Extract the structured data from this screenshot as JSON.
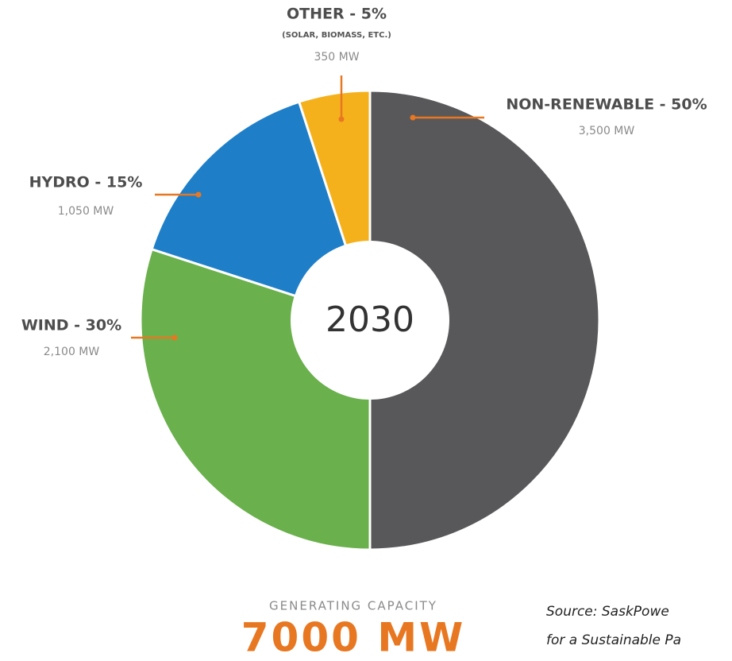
{
  "chart_data": {
    "type": "donut",
    "center_label": "2030",
    "values": [
      50,
      30,
      15,
      5
    ],
    "value_labels": [
      "NON-RENEWABLE - 50%",
      "WIND - 30%",
      "HYDRO - 15%",
      "OTHER - 5%"
    ],
    "capacity_labels": [
      "3,500 MW",
      "2,100 MW",
      "1,050 MW",
      "350 MW"
    ],
    "sublabel": "(SOLAR, BIOMASS, ETC.)",
    "colors": [
      "#58585a",
      "#6ab04c",
      "#1e7fc8",
      "#f5b11b"
    ],
    "footer_caption": "GENERATING CAPACITY",
    "footer_total": "7000 MW",
    "source_lines": [
      "Source: SaskPowe",
      "for a Sustainable Pa"
    ]
  }
}
